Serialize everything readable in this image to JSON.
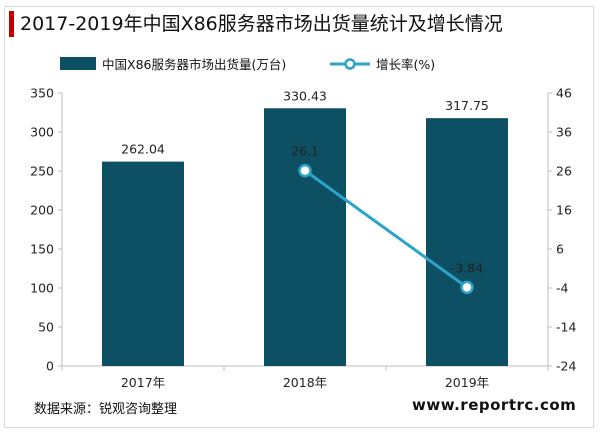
{
  "title": "2017-2019年中国X86服务器市场出货量统计及增长情况",
  "source": "数据来源：锐观咨询整理",
  "website": "www.reportrc.com",
  "colors": {
    "bar": "#0d4f63",
    "line": "#2ea3c8",
    "title_accent": "#c00000"
  },
  "chart_data": {
    "type": "bar",
    "categories": [
      "2017年",
      "2018年",
      "2019年"
    ],
    "series": [
      {
        "name": "中国X86服务器市场出货量(万台)",
        "type": "bar",
        "axis": "left",
        "values": [
          262.04,
          330.43,
          317.75
        ],
        "labels": [
          "262.04",
          "330.43",
          "317.75"
        ]
      },
      {
        "name": "增长率(%)",
        "type": "line",
        "axis": "right",
        "values": [
          null,
          26.1,
          -3.84
        ],
        "labels": [
          "",
          "26.1",
          "-3.84"
        ]
      }
    ],
    "y_left": {
      "min": 0,
      "max": 350,
      "ticks": [
        0,
        50,
        100,
        150,
        200,
        250,
        300,
        350
      ]
    },
    "y_right": {
      "min": -24,
      "max": 46,
      "ticks": [
        -24,
        -14,
        -4,
        6,
        16,
        26,
        36,
        46
      ]
    },
    "legend_position": "top",
    "grid": false
  }
}
